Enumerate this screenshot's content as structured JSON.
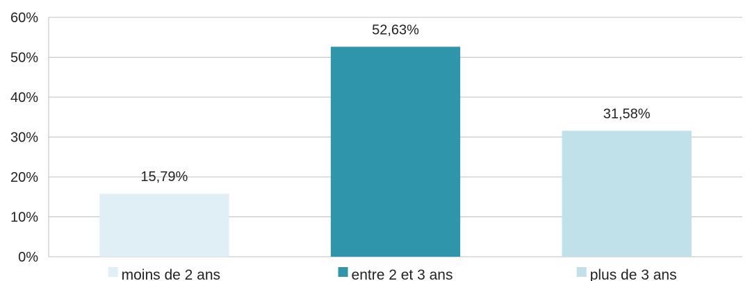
{
  "chart_data": {
    "type": "bar",
    "categories": [
      "moins de 2 ans",
      "entre 2 et 3 ans",
      "plus de 3 ans"
    ],
    "values": [
      15.79,
      52.63,
      31.58
    ],
    "value_labels": [
      "15,79%",
      "52,63%",
      "31,58%"
    ],
    "colors": [
      "#dfeff5",
      "#2f95ab",
      "#c0e1ea"
    ],
    "y_ticks": [
      "0%",
      "10%",
      "20%",
      "30%",
      "40%",
      "50%",
      "60%"
    ],
    "ylim": [
      0,
      60
    ],
    "grid": true,
    "legend_position": "bottom"
  }
}
